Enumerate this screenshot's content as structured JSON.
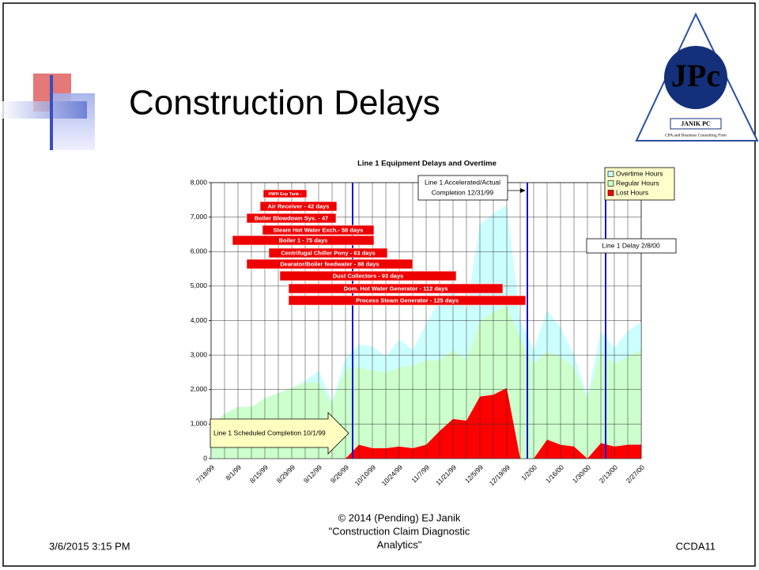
{
  "slide_title": "Construction Delays",
  "logo": {
    "mark": "JPc",
    "name": "JANIK PC",
    "tagline": "CPA and Business Consulting Firm"
  },
  "chart_data": {
    "type": "stacked_area",
    "title": "Line 1 Equipment Delays and Overtime",
    "categories": [
      "7/18/99",
      null,
      "8/1/99",
      null,
      "8/15/99",
      null,
      "8/29/99",
      null,
      "9/12/99",
      null,
      "9/26/99",
      null,
      "10/10/99",
      null,
      "10/24/99",
      null,
      "11/7/99",
      null,
      "11/21/99",
      null,
      "12/5/99",
      null,
      "12/19/99",
      null,
      "1/2/00",
      null,
      "1/16/00",
      null,
      "1/30/00",
      null,
      "2/13/00",
      null,
      "2/27/00"
    ],
    "series": [
      {
        "name": "Lost Hours",
        "color": "#ff0000",
        "values": [
          0,
          0,
          0,
          0,
          0,
          0,
          0,
          0,
          0,
          0,
          0,
          400,
          300,
          300,
          350,
          300,
          400,
          800,
          1150,
          1100,
          1800,
          1850,
          2050,
          0,
          0,
          550,
          400,
          350,
          0,
          450,
          350,
          400,
          400
        ]
      },
      {
        "name": "Regular Hours",
        "color": "#ccffcc",
        "values": [
          950,
          1300,
          1500,
          1500,
          1750,
          1900,
          2050,
          2200,
          2200,
          1600,
          2600,
          2250,
          2250,
          2200,
          2300,
          2400,
          2450,
          2050,
          2000,
          1750,
          2200,
          2400,
          2400,
          3500,
          2750,
          2550,
          2550,
          2300,
          1750,
          2650,
          2400,
          2550,
          2750
        ]
      },
      {
        "name": "Overtime Hours",
        "color": "#ccffff",
        "values": [
          0,
          0,
          0,
          0,
          0,
          0,
          0,
          50,
          350,
          50,
          300,
          650,
          700,
          450,
          800,
          450,
          1050,
          1750,
          1750,
          1450,
          2800,
          2850,
          2900,
          500,
          400,
          1200,
          850,
          350,
          50,
          600,
          450,
          750,
          800
        ]
      }
    ],
    "ylim": [
      0,
      8000
    ],
    "yticks": [
      0,
      {
        "value": 1000,
        "label": "1,000"
      },
      {
        "value": 2000,
        "label": "2,000"
      },
      {
        "value": 3000,
        "label": "3,000"
      },
      {
        "value": 4000,
        "label": "4,000"
      },
      {
        "value": 5000,
        "label": "5,000"
      },
      {
        "value": 6000,
        "label": "6,000"
      },
      {
        "value": 7000,
        "label": "7,000"
      },
      {
        "value": 8000,
        "label": "8,000"
      }
    ],
    "grid": true,
    "legend": "top-right",
    "delays": [
      "HWH Exp Tank -",
      "Air Receiver - 42 days",
      "Boiler Blowdown Sys. - 47",
      "Steam Hot Water Exch.- 58 days",
      "Boiler 1 - 75 days",
      "Centrifugal Chiller Pony - 63 days",
      "Dearator/Boiler feedwater - 88 days",
      "Dust Collectors - 93 days",
      "Dom. Hot Water Generator - 112 days",
      "Process Steam Generator - 125 days"
    ],
    "annotations": {
      "scheduled": "Line 1 Scheduled Completion 10/1/99",
      "actual": [
        "Line 1 Accelerated/Actual",
        "Completion 12/31/99"
      ],
      "delay": "Line 1 Delay 2/8/00"
    }
  },
  "footer": {
    "date": "3/6/2015 3:15 PM",
    "credit": [
      "© 2014 (Pending) EJ Janik",
      "\"Construction Claim Diagnostic",
      "Analytics\""
    ],
    "slide_id": "CCDA11"
  }
}
